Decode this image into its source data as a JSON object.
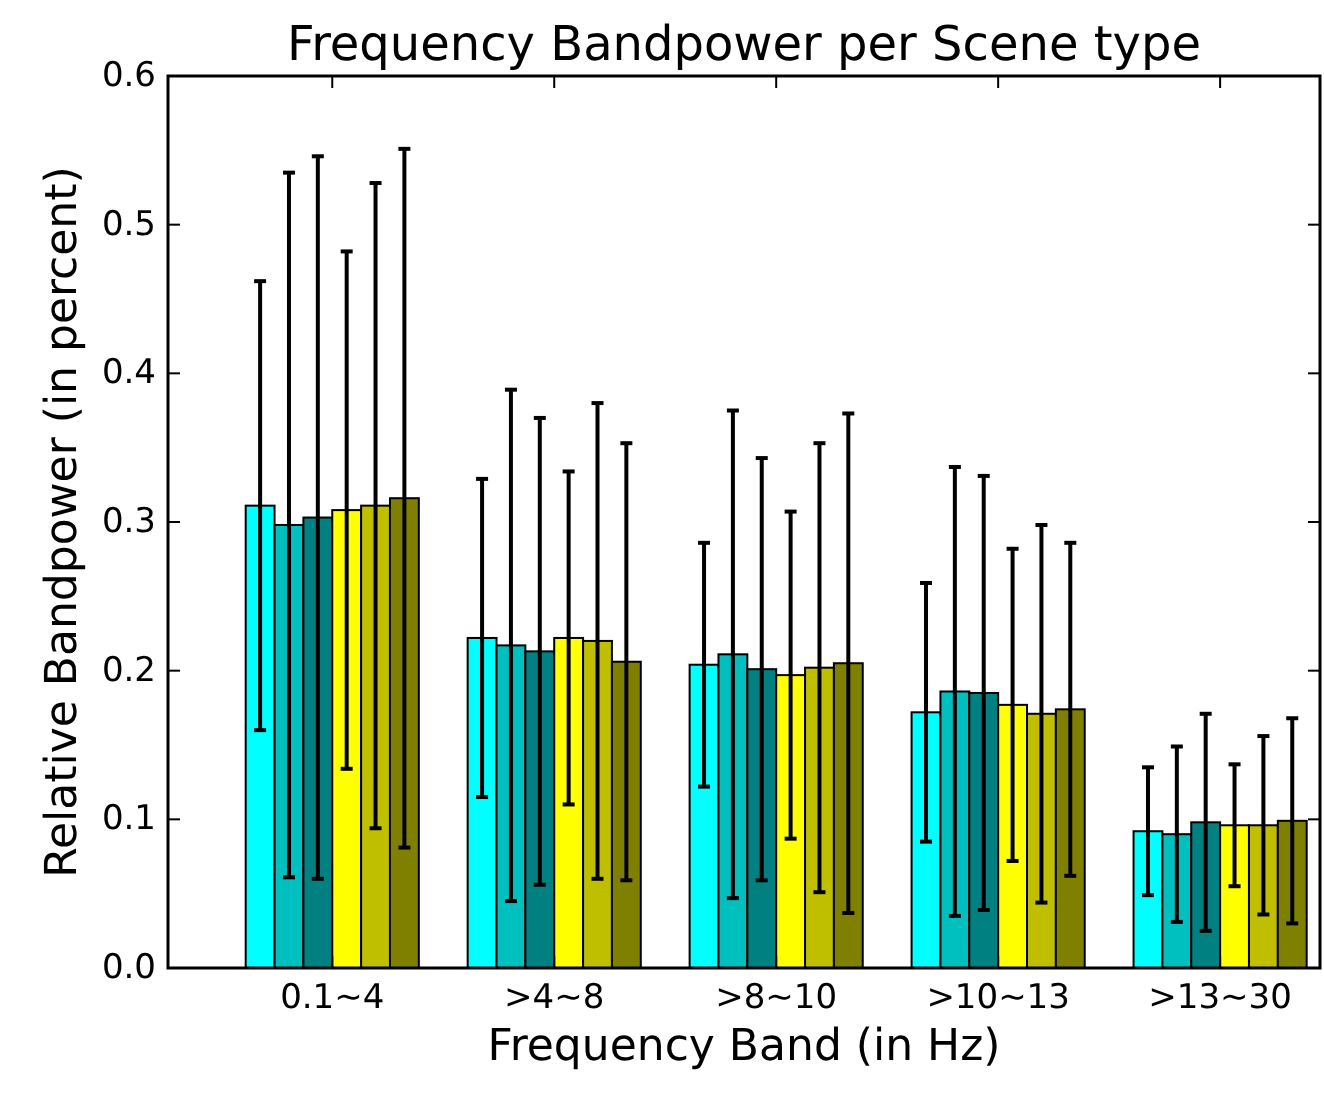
{
  "chart_data": {
    "type": "bar",
    "title": "Frequency Bandpower per Scene type",
    "xlabel": "Frequency Band (in Hz)",
    "ylabel": "Relative Bandpower (in percent)",
    "categories": [
      "0.1~4",
      ">4~8",
      ">8~10",
      ">10~13",
      ">13~30"
    ],
    "ylim": [
      0,
      0.6
    ],
    "yticks": [
      {
        "value": 0,
        "label": "0.0"
      },
      0.1,
      0.2,
      0.3,
      0.4,
      0.5,
      0.6
    ],
    "grid": false,
    "series": [
      {
        "color": "#00ffff",
        "values": [
          0.311,
          0.222,
          0.204,
          0.172,
          0.092
        ],
        "errors": [
          0.151,
          0.107,
          0.082,
          0.087,
          0.043
        ]
      },
      {
        "color": "#00bfbf",
        "values": [
          0.298,
          0.217,
          0.211,
          0.186,
          0.09
        ],
        "errors": [
          0.237,
          0.172,
          0.164,
          0.151,
          0.059
        ]
      },
      {
        "color": "#008080",
        "values": [
          0.303,
          0.213,
          0.201,
          0.185,
          0.098
        ],
        "errors": [
          0.243,
          0.157,
          0.142,
          0.146,
          0.073
        ]
      },
      {
        "color": "#ffff00",
        "values": [
          0.308,
          0.222,
          0.197,
          0.177,
          0.096
        ],
        "errors": [
          0.174,
          0.112,
          0.11,
          0.105,
          0.041
        ]
      },
      {
        "color": "#bfbf00",
        "values": [
          0.311,
          0.22,
          0.202,
          0.171,
          0.096
        ],
        "errors": [
          0.217,
          0.16,
          0.151,
          0.127,
          0.06
        ]
      },
      {
        "color": "#808000",
        "values": [
          0.316,
          0.206,
          0.205,
          0.174,
          0.099
        ],
        "errors": [
          0.235,
          0.147,
          0.168,
          0.112,
          0.069
        ]
      }
    ]
  }
}
